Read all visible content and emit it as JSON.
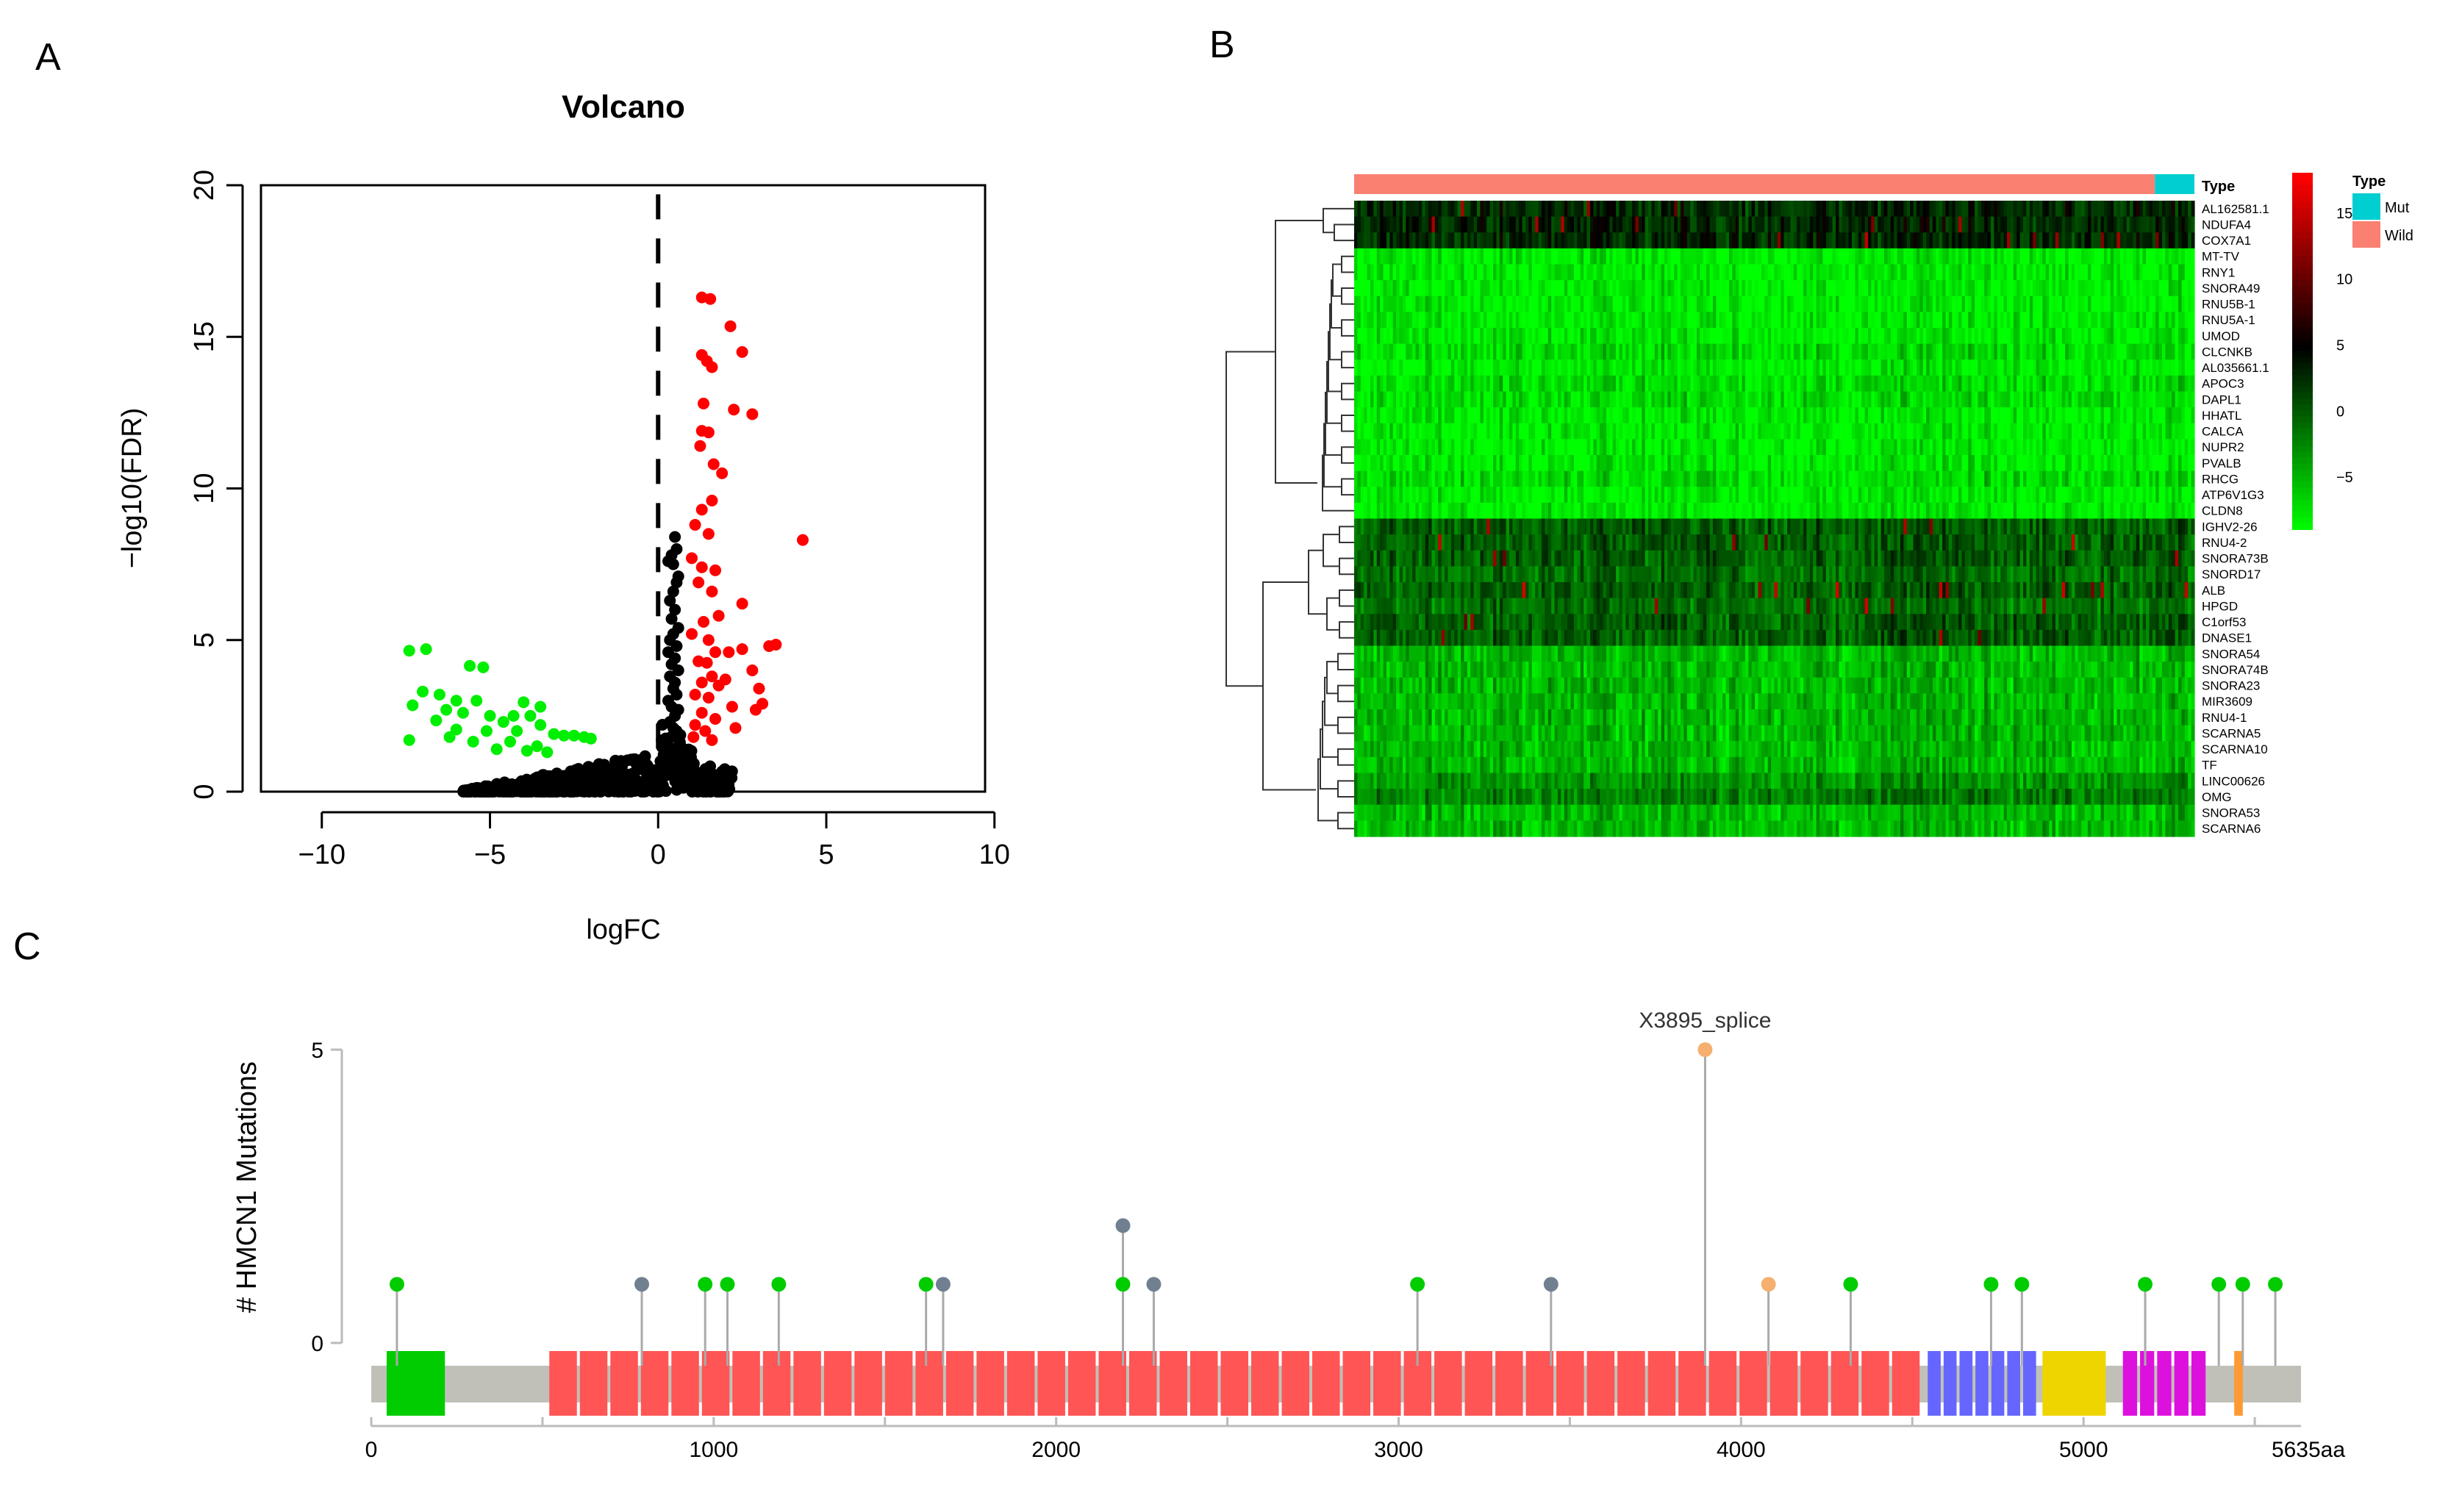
{
  "panels": {
    "a": "A",
    "b": "B",
    "c": "C"
  },
  "chart_data": [
    {
      "type": "scatter",
      "title": "Volcano",
      "xlabel": "logFC",
      "ylabel": "−log10(FDR)",
      "xlim": [
        -11,
        10.5
      ],
      "ylim": [
        0,
        20
      ],
      "xticks": [
        "−10",
        "−5",
        "0",
        "5",
        "10"
      ],
      "xtick_values": [
        -10,
        -5,
        0,
        5,
        10
      ],
      "yticks": [
        "0",
        "5",
        "10",
        "15",
        "20"
      ],
      "ytick_values": [
        0,
        5,
        10,
        15,
        20
      ],
      "threshold_line_x": 0,
      "colors": {
        "up": "#ff0000",
        "down": "#00ee00",
        "ns": "#000000"
      },
      "series": [
        {
          "name": "up",
          "points": [
            [
              1.3,
              16.3
            ],
            [
              1.55,
              16.25
            ],
            [
              2.15,
              15.35
            ],
            [
              1.3,
              14.4
            ],
            [
              1.45,
              14.2
            ],
            [
              1.6,
              14.0
            ],
            [
              2.5,
              14.5
            ],
            [
              1.35,
              12.8
            ],
            [
              2.25,
              12.6
            ],
            [
              2.8,
              12.45
            ],
            [
              1.3,
              11.9
            ],
            [
              1.5,
              11.85
            ],
            [
              1.25,
              11.4
            ],
            [
              1.65,
              10.8
            ],
            [
              1.9,
              10.5
            ],
            [
              1.6,
              9.6
            ],
            [
              1.3,
              9.3
            ],
            [
              1.1,
              8.8
            ],
            [
              1.5,
              8.5
            ],
            [
              4.3,
              8.3
            ],
            [
              1.0,
              7.7
            ],
            [
              1.3,
              7.4
            ],
            [
              1.7,
              7.3
            ],
            [
              1.2,
              6.9
            ],
            [
              1.6,
              6.6
            ],
            [
              2.5,
              6.2
            ],
            [
              1.8,
              5.8
            ],
            [
              1.35,
              5.6
            ],
            [
              1.0,
              5.2
            ],
            [
              1.5,
              5.0
            ],
            [
              2.5,
              4.7
            ],
            [
              3.3,
              4.8
            ],
            [
              3.5,
              4.85
            ],
            [
              1.7,
              4.6
            ],
            [
              2.1,
              4.6
            ],
            [
              1.2,
              4.3
            ],
            [
              1.45,
              4.25
            ],
            [
              2.8,
              4.0
            ],
            [
              1.6,
              3.8
            ],
            [
              2.0,
              3.7
            ],
            [
              1.3,
              3.6
            ],
            [
              1.8,
              3.5
            ],
            [
              3.0,
              3.4
            ],
            [
              1.1,
              3.2
            ],
            [
              1.5,
              3.1
            ],
            [
              2.2,
              2.8
            ],
            [
              3.1,
              2.9
            ],
            [
              2.9,
              2.7
            ],
            [
              1.3,
              2.6
            ],
            [
              1.7,
              2.4
            ],
            [
              1.1,
              2.2
            ],
            [
              1.4,
              2.0
            ],
            [
              2.3,
              2.1
            ],
            [
              1.05,
              1.8
            ],
            [
              1.6,
              1.7
            ]
          ]
        },
        {
          "name": "down",
          "points": [
            [
              -7.4,
              4.65
            ],
            [
              -6.9,
              4.7
            ],
            [
              -5.6,
              4.15
            ],
            [
              -5.2,
              4.1
            ],
            [
              -7.0,
              3.3
            ],
            [
              -6.5,
              3.2
            ],
            [
              -6.0,
              3.0
            ],
            [
              -5.4,
              3.0
            ],
            [
              -4.0,
              2.95
            ],
            [
              -3.5,
              2.8
            ],
            [
              -7.3,
              2.85
            ],
            [
              -6.3,
              2.7
            ],
            [
              -5.8,
              2.6
            ],
            [
              -5.0,
              2.5
            ],
            [
              -4.3,
              2.5
            ],
            [
              -3.8,
              2.5
            ],
            [
              -6.6,
              2.35
            ],
            [
              -4.6,
              2.3
            ],
            [
              -3.5,
              2.2
            ],
            [
              -6.0,
              2.05
            ],
            [
              -5.1,
              2.0
            ],
            [
              -4.2,
              2.0
            ],
            [
              -3.1,
              1.9
            ],
            [
              -2.8,
              1.85
            ],
            [
              -2.5,
              1.85
            ],
            [
              -7.4,
              1.7
            ],
            [
              -6.2,
              1.8
            ],
            [
              -5.5,
              1.65
            ],
            [
              -4.4,
              1.65
            ],
            [
              -3.6,
              1.5
            ],
            [
              -2.2,
              1.8
            ],
            [
              -2.0,
              1.75
            ],
            [
              -4.8,
              1.4
            ],
            [
              -3.9,
              1.35
            ],
            [
              -3.3,
              1.3
            ]
          ]
        },
        {
          "name": "not-significant-upper",
          "points": [
            [
              0.5,
              8.4
            ],
            [
              0.55,
              8.0
            ],
            [
              0.4,
              7.8
            ],
            [
              0.45,
              7.5
            ],
            [
              0.6,
              7.1
            ],
            [
              0.3,
              7.6
            ],
            [
              0.55,
              6.9
            ],
            [
              0.45,
              6.6
            ],
            [
              0.35,
              6.3
            ],
            [
              0.5,
              6.0
            ],
            [
              0.4,
              5.7
            ],
            [
              0.6,
              5.4
            ],
            [
              0.45,
              5.2
            ],
            [
              0.35,
              5.0
            ],
            [
              0.55,
              4.8
            ],
            [
              0.3,
              4.6
            ],
            [
              0.5,
              4.4
            ],
            [
              0.4,
              4.2
            ],
            [
              0.6,
              4.0
            ],
            [
              0.35,
              3.8
            ],
            [
              0.5,
              3.6
            ],
            [
              0.45,
              3.4
            ],
            [
              0.55,
              3.2
            ],
            [
              0.3,
              3.0
            ],
            [
              0.4,
              2.8
            ],
            [
              0.6,
              2.7
            ],
            [
              0.5,
              2.5
            ],
            [
              0.35,
              2.3
            ],
            [
              0.45,
              2.1
            ],
            [
              0.55,
              2.0
            ]
          ]
        }
      ]
    },
    {
      "type": "heatmap",
      "annotation_title": "Type",
      "legend_title": "Type",
      "legend": [
        {
          "label": "Mut",
          "color": "#00ced1"
        },
        {
          "label": "Wild",
          "color": "#fa8072"
        }
      ],
      "color_scale": {
        "ticks": [
          "15",
          "10",
          "5",
          "0",
          "−5"
        ],
        "tick_values": [
          15,
          10,
          5,
          0,
          -5
        ],
        "min": -9,
        "max": 18
      },
      "groups": {
        "wild_fraction": 0.953,
        "mut_fraction": 0.047
      },
      "genes": [
        "AL162581.1",
        "NDUFA4",
        "COX7A1",
        "MT-TV",
        "RNY1",
        "SNORA49",
        "RNU5B-1",
        "RNU5A-1",
        "UMOD",
        "CLCNKB",
        "AL035661.1",
        "APOC3",
        "DAPL1",
        "HHATL",
        "CALCA",
        "NUPR2",
        "PVALB",
        "RHCG",
        "ATP6V1G3",
        "CLDN8",
        "IGHV2-26",
        "RNU4-2",
        "SNORA73B",
        "SNORD17",
        "ALB",
        "HPGD",
        "C1orf53",
        "DNASE1",
        "SNORA54",
        "SNORA74B",
        "SNORA23",
        "MIR3609",
        "RNU4-1",
        "SCARNA5",
        "SCARNA10",
        "TF",
        "LINC00626",
        "OMG",
        "SNORA53",
        "SCARNA6"
      ],
      "row_mean": [
        3,
        3,
        3,
        -8,
        -8,
        -8,
        -8,
        -8,
        -8,
        -7,
        -8,
        -7,
        -7,
        -8,
        -8,
        -8,
        -8,
        -7,
        -8,
        -8,
        0,
        0,
        0,
        -1,
        0,
        -1,
        0,
        0,
        -5,
        -5,
        -5,
        -5,
        -5,
        -5,
        -5,
        -5,
        -3,
        -2,
        -5,
        -5
      ]
    },
    {
      "type": "lollipop",
      "ylabel": "# HMCN1 Mutations",
      "yticks": [
        "0",
        "5"
      ],
      "ytick_values": [
        0,
        5
      ],
      "xticks": [
        "0",
        "1000",
        "2000",
        "3000",
        "4000",
        "5000",
        "5635aa"
      ],
      "xtick_values": [
        0,
        1000,
        2000,
        3000,
        4000,
        5000,
        5635
      ],
      "protein_length": 5635,
      "highlight_label": "X3895_splice",
      "mutations": [
        {
          "pos": 75,
          "count": 1,
          "type": "missense"
        },
        {
          "pos": 790,
          "count": 1,
          "type": "other"
        },
        {
          "pos": 975,
          "count": 1,
          "type": "missense"
        },
        {
          "pos": 1040,
          "count": 1,
          "type": "missense"
        },
        {
          "pos": 1190,
          "count": 1,
          "type": "missense"
        },
        {
          "pos": 1620,
          "count": 1,
          "type": "missense"
        },
        {
          "pos": 1670,
          "count": 1,
          "type": "other"
        },
        {
          "pos": 2195,
          "count": 2,
          "type": "other"
        },
        {
          "pos": 2195,
          "count": 1,
          "type": "missense"
        },
        {
          "pos": 2285,
          "count": 1,
          "type": "other"
        },
        {
          "pos": 3055,
          "count": 1,
          "type": "missense"
        },
        {
          "pos": 3445,
          "count": 1,
          "type": "other"
        },
        {
          "pos": 3895,
          "count": 5,
          "type": "splice"
        },
        {
          "pos": 4080,
          "count": 1,
          "type": "splice"
        },
        {
          "pos": 4320,
          "count": 1,
          "type": "missense"
        },
        {
          "pos": 4730,
          "count": 1,
          "type": "missense"
        },
        {
          "pos": 4820,
          "count": 1,
          "type": "missense"
        },
        {
          "pos": 5180,
          "count": 1,
          "type": "missense"
        },
        {
          "pos": 5395,
          "count": 1,
          "type": "missense"
        },
        {
          "pos": 5465,
          "count": 1,
          "type": "missense"
        },
        {
          "pos": 5560,
          "count": 1,
          "type": "missense"
        }
      ],
      "mutation_colors": {
        "missense": "#00cc00",
        "other": "#708090",
        "splice": "#f5b070"
      },
      "domains": [
        {
          "start": 45,
          "end": 215,
          "color": "#00cc00"
        },
        {
          "start": 520,
          "end": 4530,
          "color": "#ff5555",
          "segmented": true,
          "segment_count": 45
        },
        {
          "start": 4545,
          "end": 4870,
          "color": "#6666ff",
          "segmented": true,
          "segment_count": 7
        },
        {
          "start": 4880,
          "end": 5065,
          "color": "#eed500"
        },
        {
          "start": 5115,
          "end": 5365,
          "color": "#dd11dd",
          "segmented": true,
          "segment_count": 5
        },
        {
          "start": 5440,
          "end": 5465,
          "color": "#ff9933"
        }
      ]
    }
  ]
}
